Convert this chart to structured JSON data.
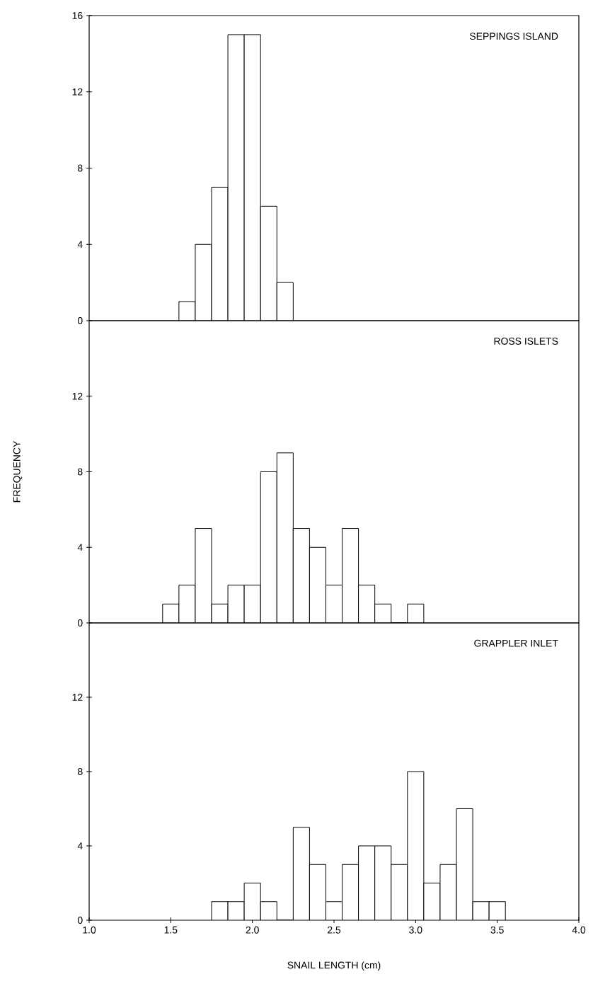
{
  "chart_data": [
    {
      "type": "histogram",
      "title": "SEPPINGS ISLAND",
      "bins": [
        1.55,
        1.65,
        1.75,
        1.85,
        1.95,
        2.05,
        2.15,
        2.25
      ],
      "values": [
        1,
        4,
        7,
        15,
        15,
        6,
        2
      ],
      "color": "#ffffff",
      "xlim": [
        1.0,
        4.0
      ],
      "ylim": [
        0,
        16
      ],
      "yticks": [
        0,
        4,
        8,
        12,
        16
      ],
      "tick_labels": "y"
    },
    {
      "type": "histogram",
      "title": "ROSS ISLETS",
      "ylabel": "FREQUENCY",
      "bins": [
        1.45,
        1.55,
        1.65,
        1.75,
        1.85,
        1.95,
        2.05,
        2.15,
        2.25,
        2.35,
        2.45,
        2.55,
        2.65,
        2.75,
        2.85,
        2.95,
        3.05
      ],
      "values": [
        1,
        2,
        5,
        1,
        2,
        2,
        8,
        9,
        5,
        4,
        2,
        5,
        2,
        1,
        0,
        1
      ],
      "color": "#ffffff",
      "xlim": [
        1.0,
        4.0
      ],
      "ylim": [
        0,
        16
      ],
      "yticks": [
        0,
        4,
        8,
        12
      ],
      "tick_labels": "y"
    },
    {
      "type": "histogram",
      "title": "GRAPPLER INLET",
      "xlabel": "SNAIL LENGTH (cm)",
      "bins": [
        1.75,
        1.85,
        1.95,
        2.05,
        2.15,
        2.25,
        2.35,
        2.45,
        2.55,
        2.65,
        2.75,
        2.85,
        2.95,
        3.05,
        3.15,
        3.25,
        3.35,
        3.45,
        3.55
      ],
      "values": [
        1,
        1,
        2,
        1,
        0,
        5,
        3,
        1,
        3,
        4,
        4,
        3,
        8,
        2,
        3,
        6,
        1,
        1
      ],
      "color": "#ffffff",
      "xlim": [
        1.0,
        4.0
      ],
      "ylim": [
        0,
        16
      ],
      "yticks": [
        0,
        4,
        8,
        12
      ],
      "xticks": [
        {
          "value": 1.0,
          "label": "1.0"
        },
        {
          "value": 1.5,
          "label": "1.5"
        },
        {
          "value": 2.0,
          "label": "2.0"
        },
        {
          "value": 2.5,
          "label": "2.5"
        },
        {
          "value": 3.0,
          "label": "3.0"
        },
        {
          "value": 3.5,
          "label": "3.5"
        },
        {
          "value": 4.0,
          "label": "4.0"
        }
      ]
    }
  ]
}
